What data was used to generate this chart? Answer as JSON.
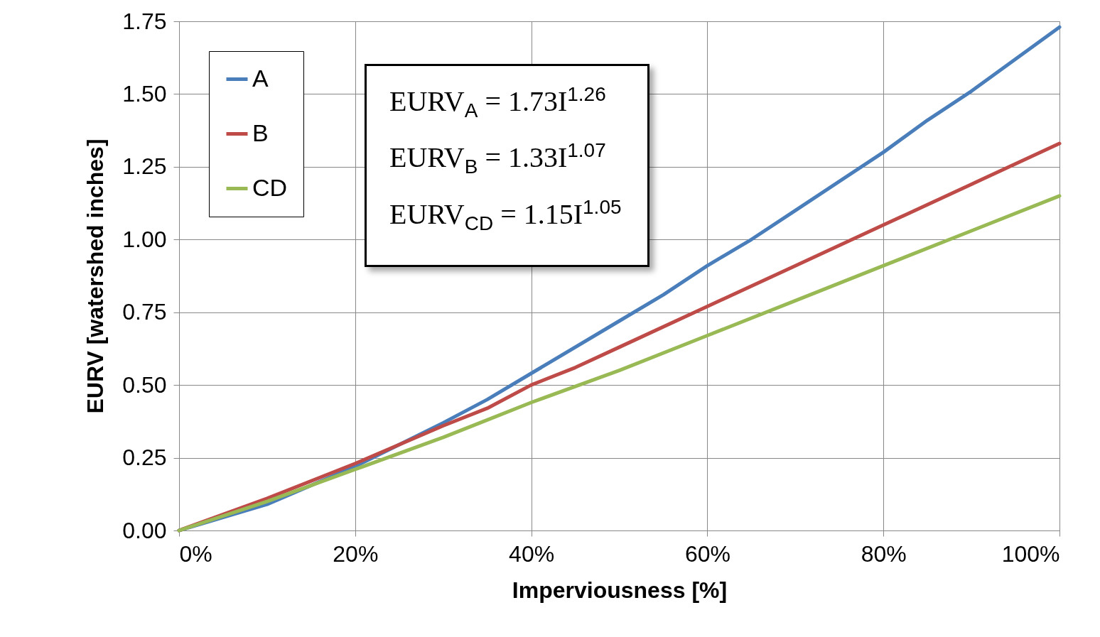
{
  "chart_data": {
    "type": "line",
    "xlabel": "Imperviousness [%]",
    "ylabel": "EURV [watershed inches]",
    "xlim": [
      0,
      100
    ],
    "ylim": [
      0,
      1.75
    ],
    "xticks": [
      {
        "value": 0,
        "label": "0%"
      },
      {
        "value": 20,
        "label": "20%"
      },
      {
        "value": 40,
        "label": "40%"
      },
      {
        "value": 60,
        "label": "60%"
      },
      {
        "value": 80,
        "label": "80%"
      },
      {
        "value": 100,
        "label": "100%"
      }
    ],
    "yticks": [
      {
        "value": 0,
        "label": "0.00"
      },
      {
        "value": 0.25,
        "label": "0.25"
      },
      {
        "value": 0.5,
        "label": "0.50"
      },
      {
        "value": 0.75,
        "label": "0.75"
      },
      {
        "value": 1,
        "label": "1.00"
      },
      {
        "value": 1.25,
        "label": "1.25"
      },
      {
        "value": 1.5,
        "label": "1.50"
      },
      {
        "value": 1.75,
        "label": "1.75"
      }
    ],
    "grid": true,
    "legend": "top left",
    "line_style": "solid",
    "marker": "none",
    "series": [
      {
        "name": "A",
        "color": "#4a7ebb",
        "x": [
          0,
          10,
          20,
          30,
          35,
          40,
          50,
          55,
          60,
          65,
          70,
          80,
          85,
          90,
          95,
          100
        ],
        "values": [
          0,
          0.09,
          0.22,
          0.37,
          0.45,
          0.54,
          0.72,
          0.81,
          0.91,
          1.0,
          1.1,
          1.3,
          1.41,
          1.51,
          1.62,
          1.73
        ]
      },
      {
        "name": "B",
        "color": "#be4b48",
        "x": [
          0,
          10,
          20,
          30,
          35,
          40,
          45,
          50,
          60,
          70,
          80,
          90,
          100
        ],
        "values": [
          0,
          0.11,
          0.23,
          0.36,
          0.42,
          0.5,
          0.56,
          0.63,
          0.77,
          0.91,
          1.05,
          1.19,
          1.33
        ]
      },
      {
        "name": "CD",
        "color": "#98b954",
        "x": [
          0,
          10,
          20,
          30,
          35,
          40,
          50,
          60,
          70,
          80,
          90,
          100
        ],
        "values": [
          0,
          0.1,
          0.21,
          0.32,
          0.38,
          0.44,
          0.55,
          0.67,
          0.79,
          0.91,
          1.03,
          1.15
        ]
      }
    ],
    "annotations": [
      "EURV$_{A}$ = 1.73I$^{1.26}$",
      "EURV$_{B}$ = 1.33I$^{1.07}$",
      "EURV$_{CD}$ = 1.15I$^{1.05}$"
    ]
  }
}
